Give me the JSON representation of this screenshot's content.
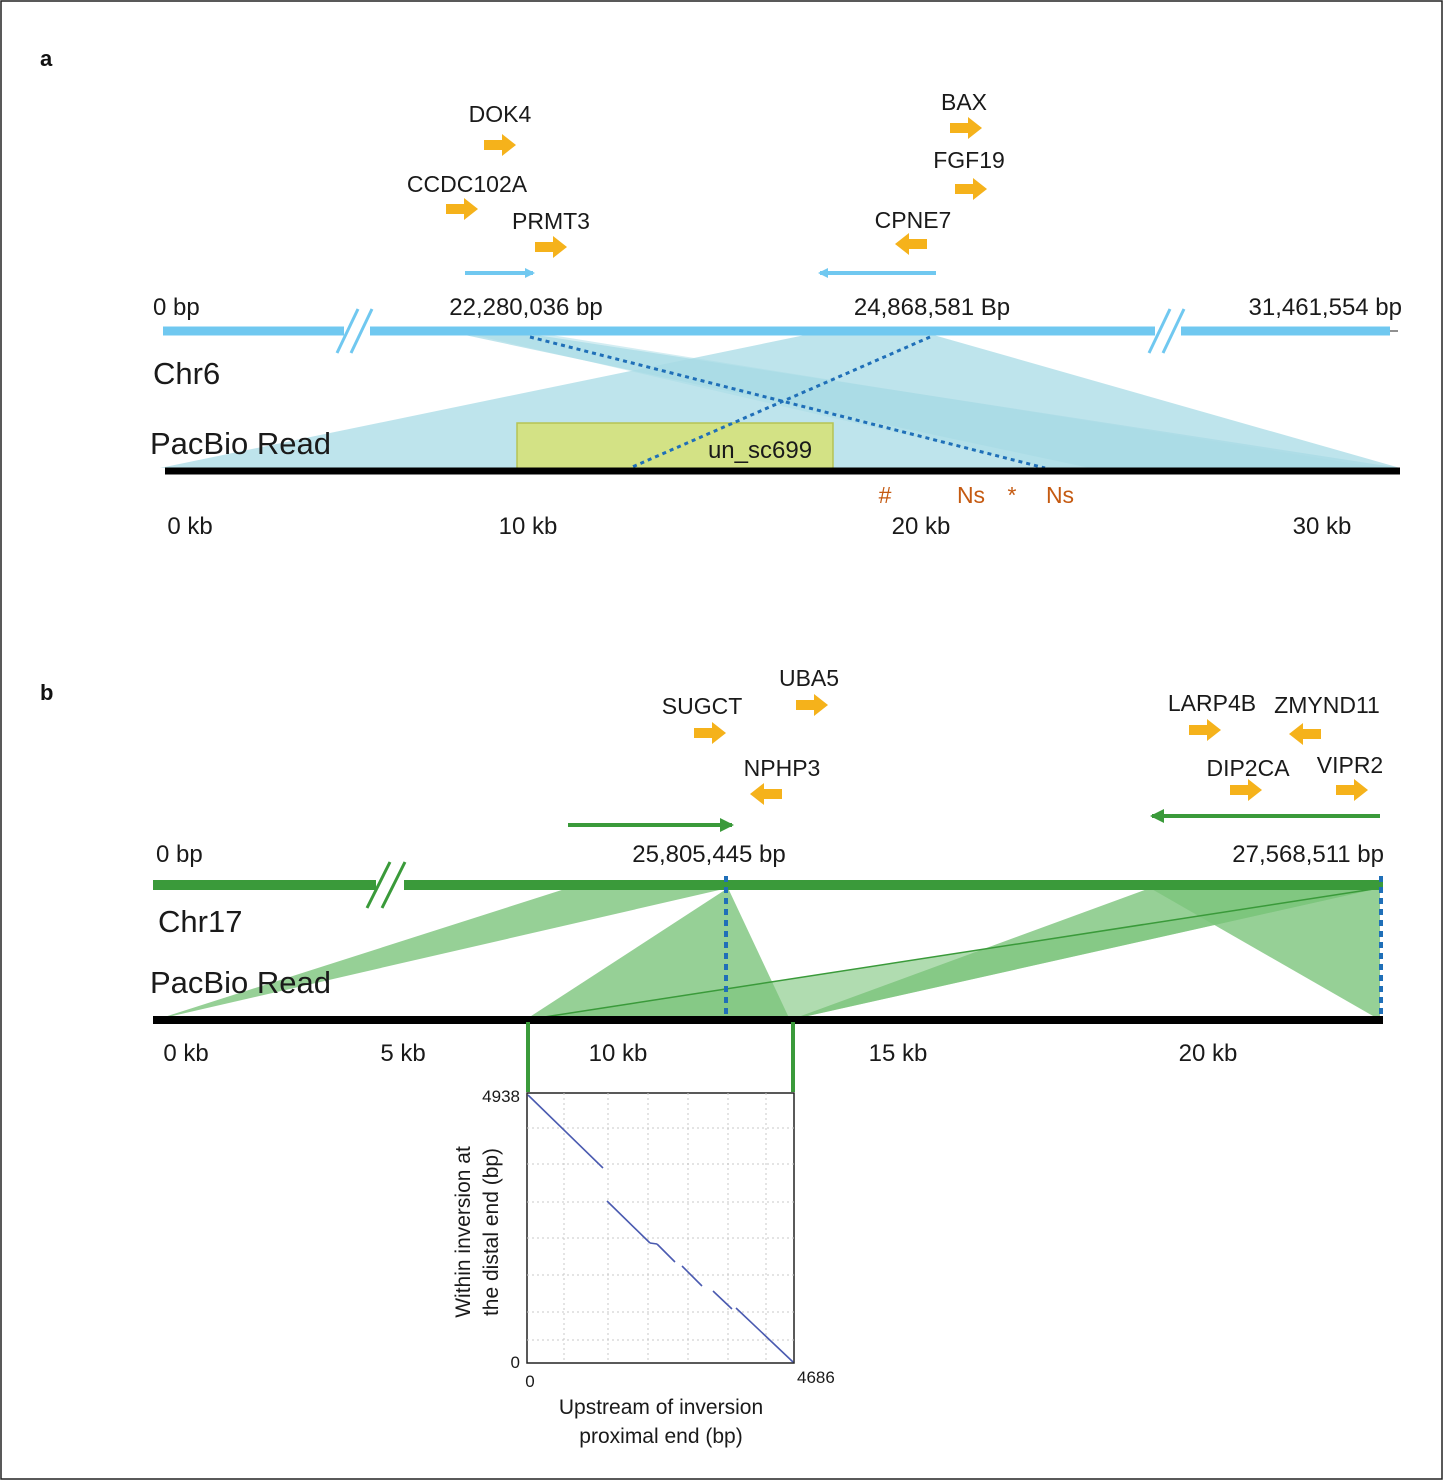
{
  "panel_a": {
    "letter": "a",
    "genes": [
      {
        "name": "DOK4",
        "dir": "right"
      },
      {
        "name": "CCDC102A",
        "dir": "right"
      },
      {
        "name": "PRMT3",
        "dir": "right"
      },
      {
        "name": "BAX",
        "dir": "right"
      },
      {
        "name": "FGF19",
        "dir": "right"
      },
      {
        "name": "CPNE7",
        "dir": "left"
      }
    ],
    "coords": [
      "0 bp",
      "22,280,036 bp",
      "24,868,581 Bp",
      "31,461,554 bp"
    ],
    "chromosome": "Chr6",
    "read_label": "PacBio Read",
    "contig": "un_sc699",
    "markers": [
      "#",
      "Ns",
      "*",
      "Ns"
    ],
    "kb_ticks": [
      "0 kb",
      "10 kb",
      "20 kb",
      "30 kb"
    ],
    "colors": {
      "chrom": "#70c8f0",
      "fill": "#a8dbe6",
      "contig": "#d6e27a",
      "gene": "#f5b21b",
      "marker": "#c55a11",
      "breakpoint": "#1f6fb8"
    }
  },
  "panel_b": {
    "letter": "b",
    "genes": [
      {
        "name": "UBA5",
        "dir": "right"
      },
      {
        "name": "SUGCT",
        "dir": "right"
      },
      {
        "name": "NPHP3",
        "dir": "left"
      },
      {
        "name": "LARP4B",
        "dir": "right"
      },
      {
        "name": "ZMYND11",
        "dir": "left"
      },
      {
        "name": "DIP2CA",
        "dir": "right"
      },
      {
        "name": "VIPR2",
        "dir": "right"
      }
    ],
    "coords": [
      "0 bp",
      "25,805,445 bp",
      "27,568,511 bp"
    ],
    "chromosome": "Chr17",
    "read_label": "PacBio Read",
    "kb_ticks": [
      "0 kb",
      "5 kb",
      "10 kb",
      "15 kb",
      "20 kb"
    ],
    "colors": {
      "chrom": "#3a9a3a",
      "fill": "#7cc47c",
      "gene": "#f5b21b",
      "breakpoint": "#1f6fb8"
    },
    "dotplot": {
      "y_max": "4938",
      "y_min": "0",
      "x_min": "0",
      "x_max": "4686",
      "y_label_line1": "Within inversion at",
      "y_label_line2": "the distal end (bp)",
      "x_label_line1": "Upstream of inversion",
      "x_label_line2": "proximal end (bp)",
      "line_color": "#4a5ab0"
    }
  }
}
